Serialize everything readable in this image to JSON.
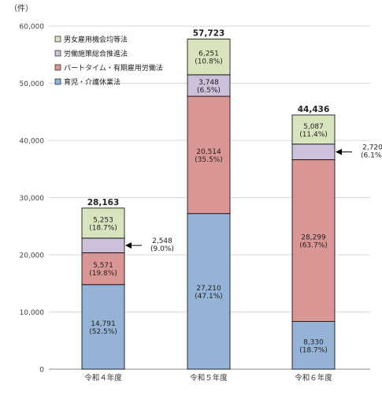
{
  "chart_data": {
    "type": "bar",
    "stacked": true,
    "ylabel": "（件）",
    "ylim": [
      0,
      60000
    ],
    "yticks": [
      "0",
      "10,000",
      "20,000",
      "30,000",
      "40,000",
      "50,000",
      "60,000"
    ],
    "grid": true,
    "legend_position": "top-left",
    "categories": [
      "令和４年度",
      "令和５年度",
      "令和６年度"
    ],
    "totals": [
      28163,
      57723,
      44436
    ],
    "total_labels": [
      "28,163",
      "57,723",
      "44,436"
    ],
    "series": [
      {
        "name": "育児・介護休業法",
        "color": "#95b3d7",
        "values": [
          14791,
          27210,
          8330
        ],
        "labels": [
          [
            "14,791",
            "(52.5%)"
          ],
          [
            "27,210",
            "(47.1%)"
          ],
          [
            "8,330",
            "(18.7%)"
          ]
        ]
      },
      {
        "name": "パートタイム・有期雇用労働法",
        "color": "#da9694",
        "values": [
          5571,
          20514,
          28299
        ],
        "labels": [
          [
            "5,571",
            "(19.8%)"
          ],
          [
            "20,514",
            "(35.5%)"
          ],
          [
            "28,299",
            "(63.7%)"
          ]
        ]
      },
      {
        "name": "労働施策総合推進法",
        "color": "#ccc0da",
        "values": [
          2548,
          3748,
          2720
        ],
        "labels": [
          [
            "2,548",
            "(9.0%)"
          ],
          [
            "3,748",
            "(6.5%)"
          ],
          [
            "2,720",
            "(6.1%)"
          ]
        ]
      },
      {
        "name": "男女雇用機会均等法",
        "color": "#d7e4bd",
        "values": [
          5253,
          6251,
          5087
        ],
        "labels": [
          [
            "5,253",
            "(18.7%)"
          ],
          [
            "6,251",
            "(10.8%)"
          ],
          [
            "5,087",
            "(11.4%)"
          ]
        ]
      }
    ],
    "legend_order": [
      "男女雇用機会均等法",
      "労働施策総合推進法",
      "パートタイム・有期雇用労働法",
      "育児・介護休業法"
    ]
  }
}
